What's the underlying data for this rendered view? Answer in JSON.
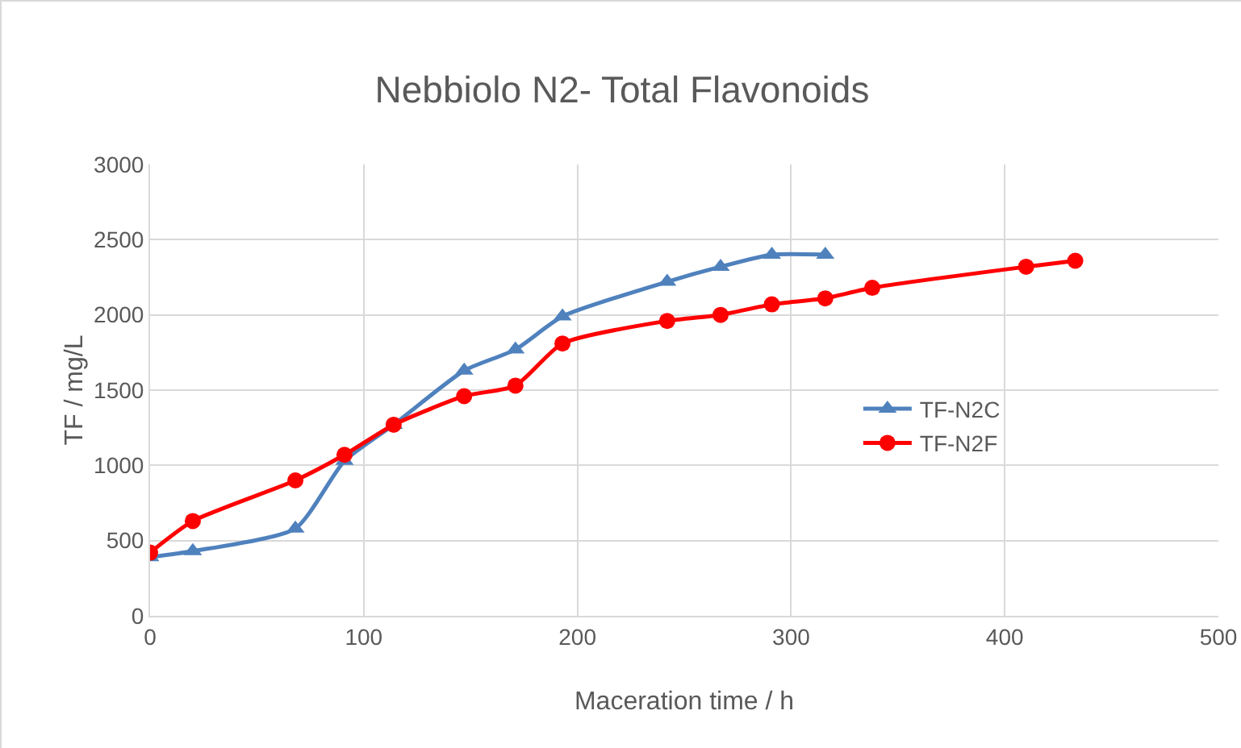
{
  "chart_data": {
    "type": "line",
    "title": "Nebbiolo N2- Total Flavonoids",
    "xlabel": "Maceration time / h",
    "ylabel": "TF / mg/L",
    "xlim": [
      0,
      500
    ],
    "xticks": [
      0,
      100,
      200,
      300,
      400,
      500
    ],
    "ylim": [
      0,
      3000
    ],
    "yticks": [
      0,
      500,
      1000,
      1500,
      2000,
      2500,
      3000
    ],
    "grid": true,
    "legend": "right",
    "series": [
      {
        "name": "TF-N2C",
        "color": "#4f81bd",
        "marker": "triangle",
        "x": [
          0,
          20,
          68,
          91,
          114,
          147,
          171,
          193,
          242,
          267,
          291,
          316
        ],
        "values": [
          390,
          430,
          580,
          1030,
          1270,
          1630,
          1770,
          1990,
          2220,
          2320,
          2400,
          2400
        ]
      },
      {
        "name": "TF-N2F",
        "color": "#ff0000",
        "marker": "circle",
        "x": [
          0,
          20,
          68,
          91,
          114,
          147,
          171,
          193,
          242,
          267,
          291,
          316,
          338,
          410,
          433
        ],
        "values": [
          420,
          630,
          900,
          1070,
          1270,
          1460,
          1530,
          1810,
          1960,
          2000,
          2070,
          2110,
          2180,
          2320,
          2360
        ]
      }
    ]
  }
}
